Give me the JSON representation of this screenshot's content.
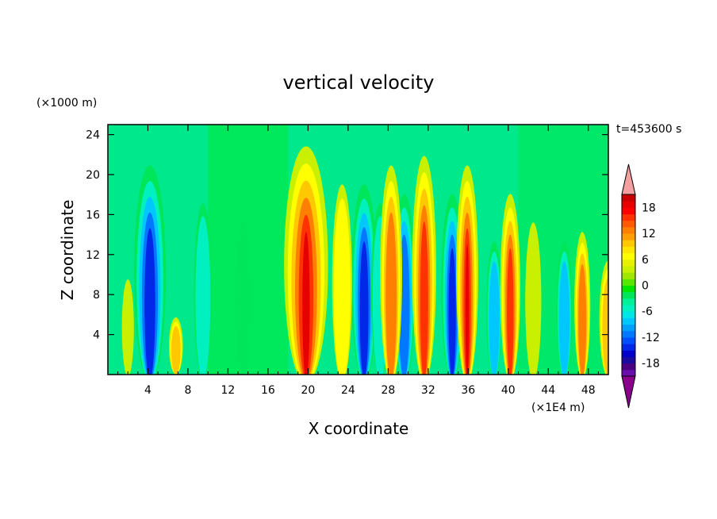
{
  "chart_data": {
    "type": "heatmap",
    "title": "vertical velocity",
    "xlabel": "X coordinate",
    "ylabel": "Z coordinate",
    "x_unit": "(×1E4 m)",
    "y_unit": "(×1000 m)",
    "time_label": "t=453600 s",
    "xlim": [
      0,
      50
    ],
    "ylim": [
      0,
      25
    ],
    "x_ticks": [
      4,
      8,
      12,
      16,
      20,
      24,
      28,
      32,
      36,
      40,
      44,
      48
    ],
    "y_ticks": [
      4,
      8,
      12,
      16,
      20,
      24
    ],
    "colorbar": {
      "levels": [
        -21,
        -19.5,
        -18,
        -16.5,
        -15,
        -13.5,
        -12,
        -10.5,
        -9,
        -7.5,
        -6,
        -4.5,
        -3,
        -1.5,
        0,
        1.5,
        3,
        4.5,
        6,
        7.5,
        9,
        10.5,
        12,
        13.5,
        15,
        16.5,
        18,
        19.5,
        21
      ],
      "tick_labels": [
        "18",
        "12",
        "6",
        "0",
        "-6",
        "-12",
        "-18"
      ],
      "tick_values": [
        18,
        12,
        6,
        0,
        -6,
        -12,
        -18
      ],
      "under_color": "#8b008b",
      "over_color": "#f4a0a0",
      "colors": [
        "#6a0dad",
        "#4b0082",
        "#1a0aa0",
        "#0000c8",
        "#0028e6",
        "#0050ff",
        "#0078ff",
        "#00a0ff",
        "#00c8ff",
        "#00e6e6",
        "#00f0c0",
        "#00f09a",
        "#00e65a",
        "#00e600",
        "#5ae600",
        "#a0e600",
        "#c8f000",
        "#e6f000",
        "#ffff00",
        "#ffe600",
        "#ffc800",
        "#ffa000",
        "#ff8000",
        "#ff5a00",
        "#ff3200",
        "#ff0000",
        "#e60000",
        "#c80000"
      ]
    },
    "updraft_bands_x": [
      4.5,
      8,
      19.5,
      26,
      30,
      31.5,
      36,
      40,
      47.5
    ],
    "downdraft_bands_x": [
      4,
      25.5,
      30,
      34.5,
      38.5,
      45.5
    ]
  }
}
